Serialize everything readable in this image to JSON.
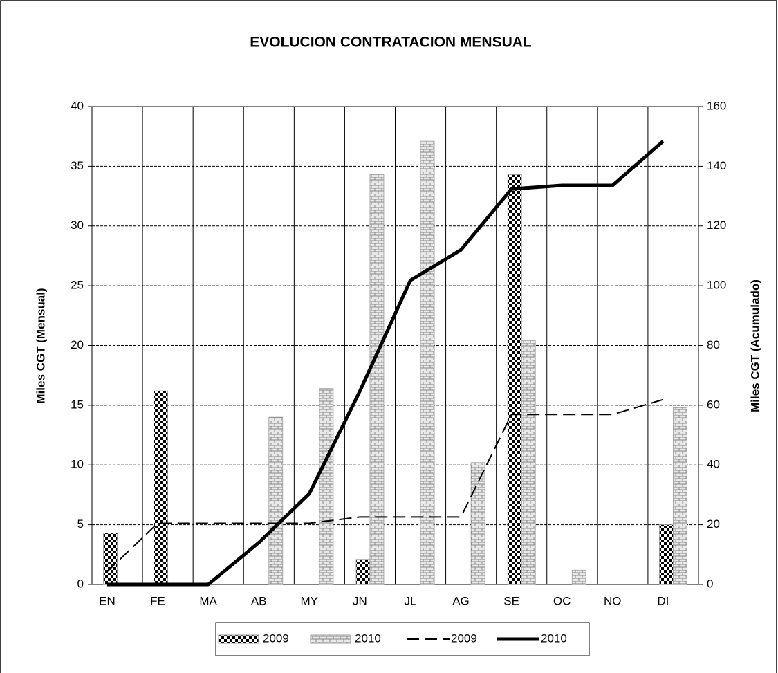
{
  "chart_data": {
    "type": "bar",
    "title": "EVOLUCION CONTRATACION MENSUAL",
    "y_label": "Miles CGT  (Mensual)",
    "y2_label": "Miles CGT  (Acumulado)",
    "categories": [
      "EN",
      "FE",
      "MA",
      "AB",
      "MY",
      "JN",
      "JL",
      "AG",
      "SE",
      "OC",
      "NO",
      "DI"
    ],
    "ylim": [
      0,
      40
    ],
    "yticks": [
      0,
      5,
      10,
      15,
      20,
      25,
      30,
      35,
      40
    ],
    "y2lim": [
      0,
      160
    ],
    "y2ticks": [
      0,
      20,
      40,
      60,
      80,
      100,
      120,
      140,
      160
    ],
    "grid": true,
    "legend": "bottom",
    "series": [
      {
        "name": "2009",
        "type": "bar",
        "pattern": "checker",
        "color": "#000000",
        "values": [
          4.3,
          16.2,
          0,
          0,
          0,
          2.1,
          0,
          0,
          34.3,
          0,
          0,
          5.0
        ]
      },
      {
        "name": "2010",
        "type": "bar",
        "pattern": "brick",
        "color": "#a0a0a0",
        "values": [
          0,
          0,
          0,
          14,
          16.4,
          34.3,
          37.1,
          10.2,
          20.4,
          1.2,
          0,
          14.8
        ]
      },
      {
        "name": "2009",
        "type": "line",
        "axis": "y2",
        "dash": true,
        "color": "#000000",
        "values": [
          4.3,
          20.5,
          20.5,
          20.5,
          20.5,
          22.6,
          22.6,
          22.6,
          56.9,
          56.9,
          56.9,
          61.9
        ]
      },
      {
        "name": "2010",
        "type": "line",
        "axis": "y2",
        "dash": false,
        "color": "#000000",
        "values": [
          0,
          0,
          0,
          14,
          30.4,
          64.7,
          101.8,
          112,
          132.4,
          133.6,
          133.6,
          148.4
        ]
      }
    ]
  }
}
